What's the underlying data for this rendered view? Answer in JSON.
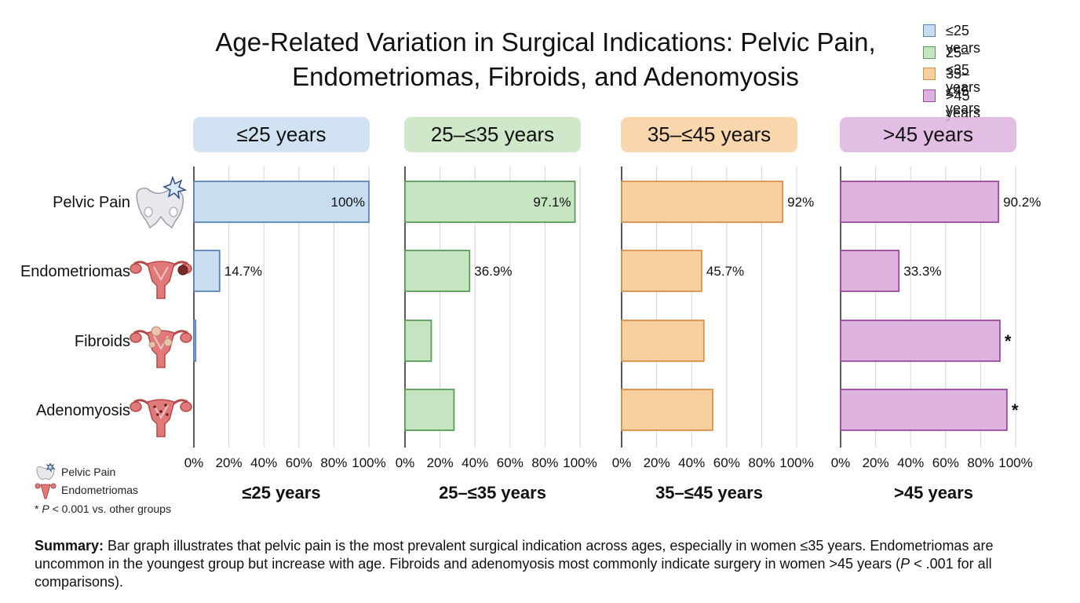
{
  "chart_data": {
    "type": "bar",
    "orientation": "horizontal",
    "title": "Age-Related Variation in Surgical Indications: Pelvic Pain, Endometriomas, Fibroids, and Adenomyosis",
    "categories": [
      "Pelvic Pain",
      "Endometriomas",
      "Fibroids",
      "Adenomyosis"
    ],
    "xlim": [
      0,
      100
    ],
    "x_ticks": [
      "0%",
      "20%",
      "40%",
      "60%",
      "80%",
      "100%"
    ],
    "grid": true,
    "legend_placement": "top-right",
    "series": [
      {
        "name": "≤25 years",
        "panel_title": "≤25 years",
        "xlabel": "≤25 years",
        "color": "#c9ddf0",
        "edge": "#5b84b4",
        "values": [
          100,
          14.7,
          1,
          0
        ],
        "labels": [
          "100%",
          "14.7%",
          "",
          ""
        ],
        "marks": [
          "",
          "",
          "",
          ""
        ]
      },
      {
        "name": "25–≤35 years",
        "panel_title": "25–≤35 years",
        "xlabel": "25–≤35 years",
        "color": "#c5e4c0",
        "edge": "#5a9a5a",
        "values": [
          97.1,
          36.9,
          15,
          28
        ],
        "labels": [
          "97.1%",
          "36.9%",
          "",
          ""
        ],
        "marks": [
          "",
          "",
          "",
          ""
        ]
      },
      {
        "name": "35–≤45 years",
        "panel_title": "35–≤45 years",
        "xlabel": "35–≤45 years",
        "color": "#f8cf9e",
        "edge": "#d8924a",
        "values": [
          92,
          45.7,
          47,
          52
        ],
        "labels": [
          "92%",
          "45.7%",
          "",
          ""
        ],
        "marks": [
          "",
          "",
          "",
          ""
        ]
      },
      {
        "name": ">45 years",
        "panel_title": ">45 years",
        "xlabel": ">45 years",
        "color": "#ddb2df",
        "edge": "#9a4c9c",
        "values": [
          90.2,
          33.3,
          91,
          95
        ],
        "labels": [
          "90.2%",
          "33.3%",
          "",
          ""
        ],
        "marks": [
          "",
          "",
          "*",
          "*"
        ]
      }
    ]
  },
  "notes": {
    "pelvic_pain": "Pelvic Pain",
    "endometriomas": "Endometriomas",
    "footnote_star": "* ",
    "footnote_p": "P",
    "footnote_rest": " < 0.001 vs. other groups"
  },
  "summary": {
    "label": "Summary:",
    "text_before_p": " Bar graph illustrates that pelvic pain is the most prevalent surgical indication across ages, especially in women ≤35 years. Endometriomas are uncommon in the youngest group but increase with age. Fibroids and adenomyosis most commonly indicate surgery in women >45 years (",
    "p": "P",
    "text_after_p": " < .001 for all comparisons)."
  },
  "icons": [
    "pelvis-pain-icon",
    "uterus-endometrioma-icon",
    "uterus-fibroid-icon",
    "uterus-adenomyosis-icon"
  ],
  "colors": {
    "uterus": "#e07a7a",
    "uterus_edge": "#b54848",
    "pelvis": "#e6e8ec"
  }
}
